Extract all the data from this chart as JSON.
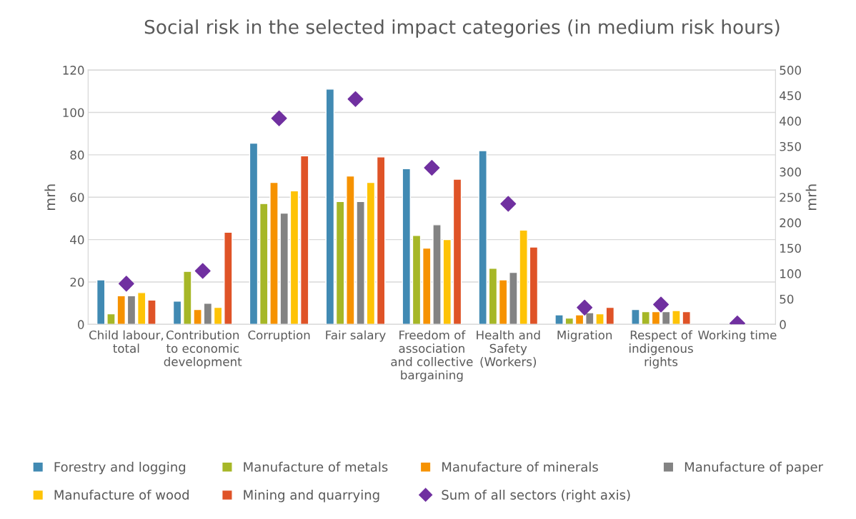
{
  "chart_data": {
    "type": "bar",
    "title": "Social risk in the selected impact categories (in medium risk hours)",
    "categories": [
      "Child labour, total",
      "Contribution to economic development",
      "Corruption",
      "Fair salary",
      "Freedom of association and collective bargaining",
      "Health and Safety (Workers)",
      "Migration",
      "Respect of indigenous rights",
      "Working time"
    ],
    "ylabel": "mrh",
    "y2label": "mrh",
    "ylim": [
      0,
      120
    ],
    "yticks": [
      0,
      20,
      40,
      60,
      80,
      100,
      120
    ],
    "y2lim": [
      0,
      500
    ],
    "y2ticks": [
      0,
      50,
      100,
      150,
      200,
      250,
      300,
      350,
      400,
      450,
      500
    ],
    "grid": "y",
    "legend": "bottom",
    "series": [
      {
        "name": "Forestry and logging",
        "color": "#418ab3",
        "values": [
          21,
          11,
          85.5,
          111,
          73.5,
          82,
          4.5,
          7,
          null
        ]
      },
      {
        "name": "Manufacture of metals",
        "color": "#a6b727",
        "values": [
          5,
          25,
          57,
          58,
          42,
          26.5,
          3,
          6,
          null
        ]
      },
      {
        "name": "Manufacture of minerals",
        "color": "#f69200",
        "values": [
          13.5,
          7,
          67,
          70,
          36,
          21,
          4.5,
          6,
          null
        ]
      },
      {
        "name": "Manufacture of paper",
        "color": "#838383",
        "values": [
          13.5,
          10,
          52.5,
          58,
          47,
          24.5,
          5.5,
          6,
          null
        ]
      },
      {
        "name": "Manufacture of wood",
        "color": "#fec306",
        "values": [
          15,
          8,
          63,
          67,
          40,
          44.5,
          5,
          6.5,
          null
        ]
      },
      {
        "name": "Mining and quarrying",
        "color": "#df5327",
        "values": [
          11.5,
          43.5,
          79.5,
          79,
          68.5,
          36.5,
          8,
          6,
          null
        ]
      },
      {
        "name": "Sum of all sectors (right axis)",
        "color": "#7030a0",
        "type": "scatter",
        "axis": "y2",
        "marker": "diamond",
        "values": [
          80,
          105,
          405,
          443,
          308,
          237,
          33,
          39,
          2
        ]
      }
    ]
  }
}
